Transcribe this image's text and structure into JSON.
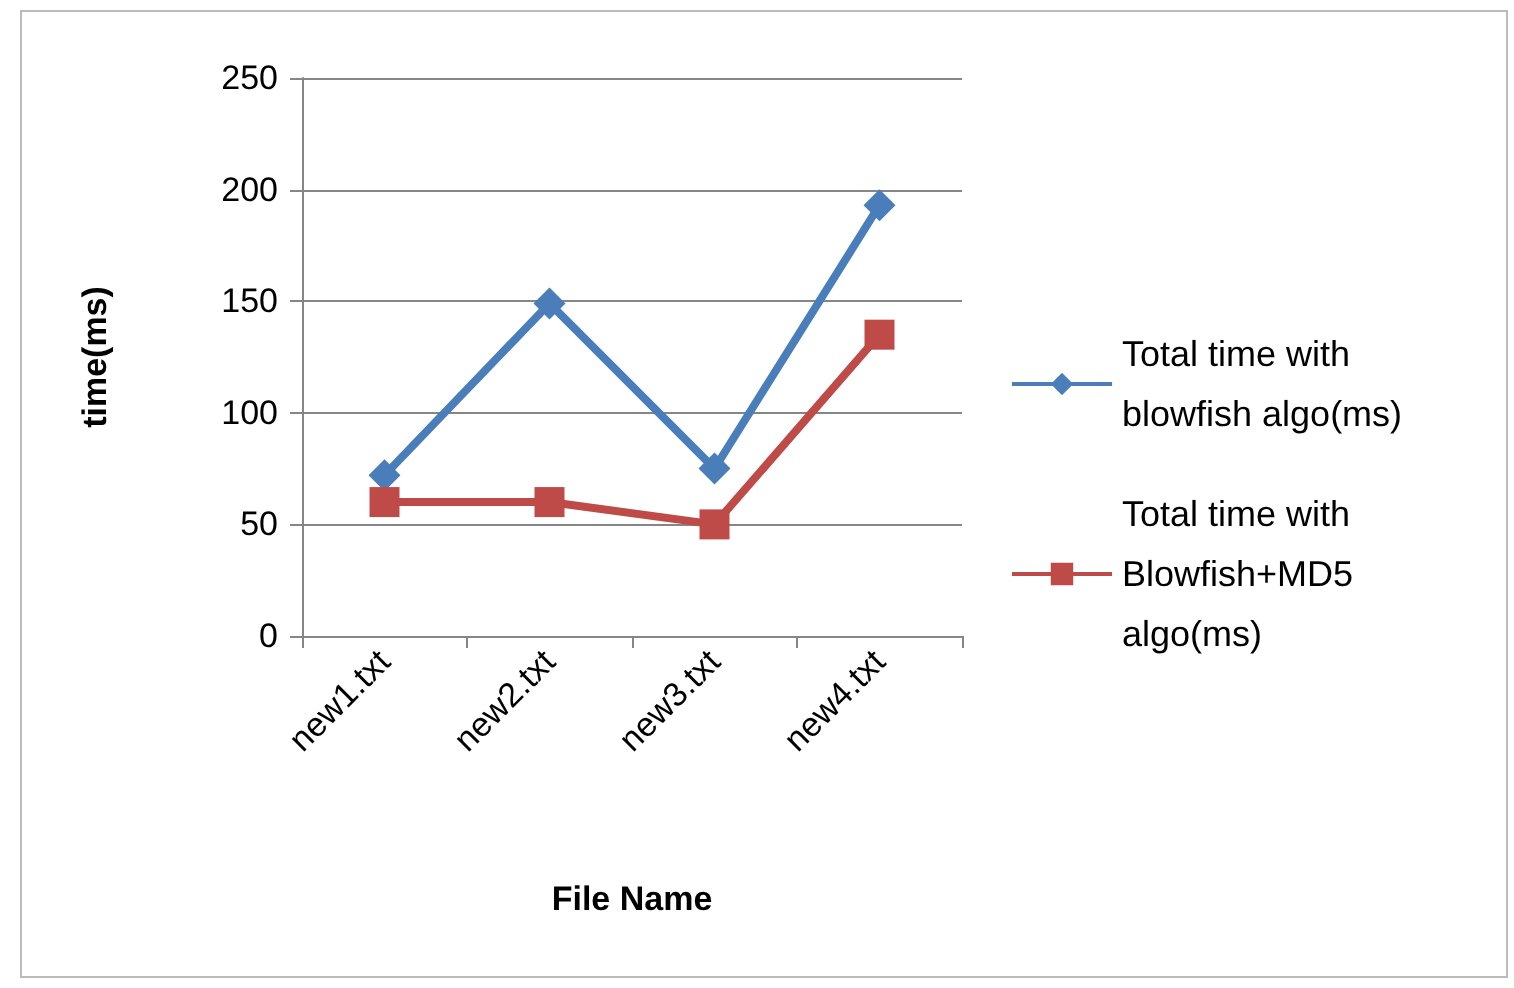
{
  "chart_data": {
    "type": "line",
    "xlabel": "File Name",
    "ylabel": "time(ms)",
    "categories": [
      "new1.txt",
      "new2.txt",
      "new3.txt",
      "new4.txt"
    ],
    "series": [
      {
        "name": "Total time with blowfish algo(ms)",
        "color": "#4a7ebb",
        "values": [
          72,
          149,
          75,
          193
        ],
        "marker": "diamond"
      },
      {
        "name": "Total time with Blowfish+MD5 algo(ms)",
        "color": "#be4b48",
        "values": [
          60,
          60,
          50,
          135
        ],
        "marker": "square"
      }
    ],
    "ylim": [
      0,
      250
    ],
    "yticks": [
      0,
      50,
      100,
      150,
      200,
      250
    ],
    "grid": "y",
    "legend": "right"
  }
}
